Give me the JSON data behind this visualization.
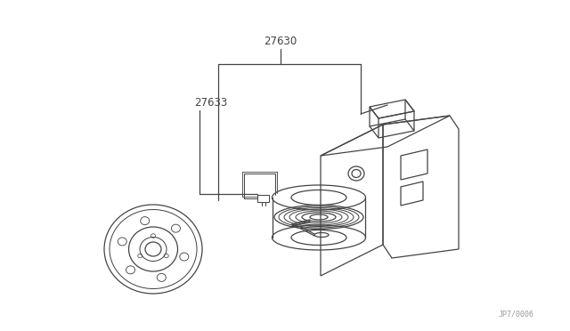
{
  "bg_color": "#ffffff",
  "line_color": "#444444",
  "label_27630": "27630",
  "label_27633": "27633",
  "watermark": "JP7/0006",
  "lw": 0.9,
  "fig_w": 6.4,
  "fig_h": 3.72,
  "dpi": 100
}
